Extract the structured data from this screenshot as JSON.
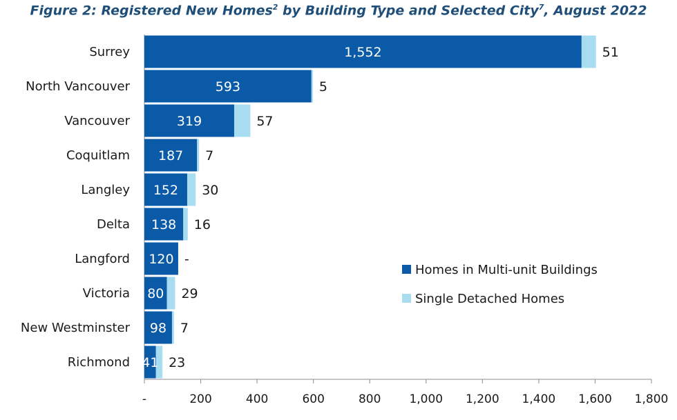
{
  "chart_data": {
    "type": "bar",
    "orientation": "horizontal",
    "stacked": true,
    "title": {
      "part1": "Figure 2: Registered New Homes",
      "sup1": "2",
      "part2": " by Building Type and Selected City",
      "sup2": "7",
      "part3": ", August 2022"
    },
    "categories": [
      "Surrey",
      "North Vancouver",
      "Vancouver",
      "Coquitlam",
      "Langley",
      "Delta",
      "Langford",
      "Victoria",
      "New Westminster",
      "Richmond"
    ],
    "series": [
      {
        "name": "Homes in Multi-unit Buildings",
        "color": "#0b5aa8",
        "values": [
          1552,
          593,
          319,
          187,
          152,
          138,
          120,
          80,
          98,
          41
        ],
        "labels": [
          "1,552",
          "593",
          "319",
          "187",
          "152",
          "138",
          "120",
          "80",
          "98",
          "41"
        ]
      },
      {
        "name": "Single Detached Homes",
        "color": "#a8dcf0",
        "values": [
          51,
          5,
          57,
          7,
          30,
          16,
          0,
          29,
          7,
          23
        ],
        "labels": [
          "51",
          "5",
          "57",
          "7",
          "30",
          "16",
          "-",
          "29",
          "7",
          "23"
        ]
      }
    ],
    "xlim": [
      0,
      1800
    ],
    "xticks": [
      0,
      200,
      400,
      600,
      800,
      1000,
      1200,
      1400,
      1600,
      1800
    ],
    "xtick_labels": [
      "-",
      "200",
      "400",
      "600",
      "800",
      "1,000",
      "1,200",
      "1,400",
      "1,600",
      "1,800"
    ],
    "grid": false,
    "legend_position": "right"
  }
}
